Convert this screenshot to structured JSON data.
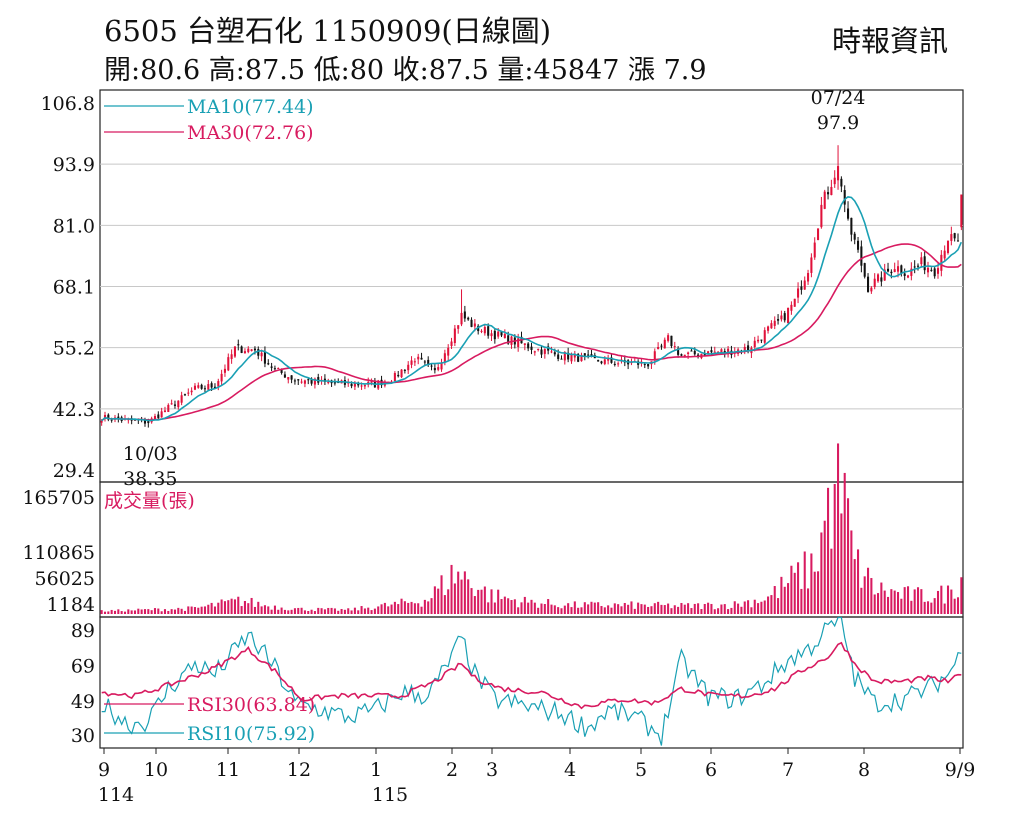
{
  "header": {
    "title": "6505 台塑石化 1150909(日線圖)",
    "source": "時報資訊",
    "ohlc": "開:80.6 高:87.5 低:80 收:87.5 量:45847 漲 7.9"
  },
  "colors": {
    "up": "#e0113a",
    "down": "#111111",
    "ma10": "#1aa0b4",
    "ma30": "#d81b60",
    "volume": "#d81b60",
    "rsi30": "#d81b60",
    "rsi10": "#1aa0b4",
    "grid": "#c8c8c8"
  },
  "chart_data": [
    {
      "type": "candlestick",
      "title": "6505 台塑石化 1150909(日線圖)",
      "ylim": [
        29.4,
        106.8
      ],
      "y_ticks": [
        "106.8",
        "93.9",
        "81.0",
        "68.1",
        "55.2",
        "42.3",
        "29.4"
      ],
      "x_ticks": [
        "9",
        "10",
        "11",
        "12",
        "1",
        "2",
        "3",
        "4",
        "5",
        "6",
        "7",
        "8",
        "9/9"
      ],
      "x_tick_sublabels": [
        {
          "at": "9",
          "label": "114"
        },
        {
          "at": "1",
          "label": "115"
        }
      ],
      "legend": [
        {
          "name": "MA10(77.44)"
        },
        {
          "name": "MA30(72.76)"
        }
      ],
      "annotations": [
        {
          "date": "07/24",
          "value": "97.9",
          "label": "07/24\n97.9"
        },
        {
          "date": "10/03",
          "value": "38.35",
          "label": "10/03\n38.35"
        }
      ],
      "last_candle": {
        "open": 80.6,
        "high": 87.5,
        "low": 80,
        "close": 87.5
      },
      "close_anchors": [
        [
          0,
          40.5
        ],
        [
          8,
          39.8
        ],
        [
          14,
          39.5
        ],
        [
          20,
          42.5
        ],
        [
          28,
          46.5
        ],
        [
          34,
          47.2
        ],
        [
          40,
          55.0
        ],
        [
          46,
          54.8
        ],
        [
          52,
          50.5
        ],
        [
          58,
          48.5
        ],
        [
          66,
          47.8
        ],
        [
          74,
          47.5
        ],
        [
          82,
          47.5
        ],
        [
          88,
          49.0
        ],
        [
          94,
          53.0
        ],
        [
          100,
          50.0
        ],
        [
          104,
          56.0
        ],
        [
          108,
          62.0
        ],
        [
          112,
          59.5
        ],
        [
          118,
          58.0
        ],
        [
          124,
          56.5
        ],
        [
          130,
          55.0
        ],
        [
          136,
          53.8
        ],
        [
          142,
          53.2
        ],
        [
          148,
          52.5
        ],
        [
          156,
          52.0
        ],
        [
          164,
          51.8
        ],
        [
          170,
          57.0
        ],
        [
          174,
          53.5
        ],
        [
          180,
          54.0
        ],
        [
          188,
          54.5
        ],
        [
          194,
          55.0
        ],
        [
          200,
          59.0
        ],
        [
          204,
          61.0
        ],
        [
          208,
          65.0
        ],
        [
          212,
          72.0
        ],
        [
          216,
          85.0
        ],
        [
          220,
          92.0
        ],
        [
          222,
          90.0
        ],
        [
          224,
          81.0
        ],
        [
          226,
          77.5
        ],
        [
          230,
          68.0
        ],
        [
          234,
          70.0
        ],
        [
          238,
          72.5
        ],
        [
          242,
          71.0
        ],
        [
          246,
          73.0
        ],
        [
          250,
          71.5
        ],
        [
          254,
          78.5
        ],
        [
          257,
          77.0
        ],
        [
          258,
          87.5
        ]
      ],
      "ma10_last": 77.44,
      "ma30_last": 72.76
    },
    {
      "type": "bar",
      "title": "成交量(張)",
      "ylim": [
        1184,
        165705
      ],
      "y_ticks": [
        "165705",
        "110865",
        "56025",
        "1184"
      ],
      "volume_anchors": [
        [
          0,
          2500
        ],
        [
          28,
          6000
        ],
        [
          36,
          12000
        ],
        [
          42,
          16000
        ],
        [
          50,
          9000
        ],
        [
          60,
          5000
        ],
        [
          74,
          4000
        ],
        [
          88,
          11000
        ],
        [
          98,
          18000
        ],
        [
          106,
          52000
        ],
        [
          110,
          44000
        ],
        [
          116,
          24000
        ],
        [
          126,
          15000
        ],
        [
          140,
          10000
        ],
        [
          160,
          10000
        ],
        [
          176,
          9000
        ],
        [
          190,
          11000
        ],
        [
          200,
          20000
        ],
        [
          208,
          46000
        ],
        [
          214,
          62000
        ],
        [
          218,
          135000
        ],
        [
          220,
          165705
        ],
        [
          223,
          140000
        ],
        [
          226,
          65000
        ],
        [
          232,
          32000
        ],
        [
          240,
          24000
        ],
        [
          248,
          22000
        ],
        [
          254,
          26000
        ],
        [
          258,
          45847
        ]
      ]
    },
    {
      "type": "line",
      "title": "RSI",
      "y_ticks": [
        "89",
        "69",
        "49",
        "30"
      ],
      "legend": [
        {
          "name": "RSI30(63.84)"
        },
        {
          "name": "RSI10(75.92)"
        }
      ],
      "series": [
        {
          "name": "RSI30(63.84)",
          "anchors": [
            [
              0,
              54
            ],
            [
              10,
              52
            ],
            [
              20,
              58
            ],
            [
              32,
              66
            ],
            [
              44,
              78
            ],
            [
              52,
              66
            ],
            [
              60,
              50
            ],
            [
              70,
              52
            ],
            [
              80,
              52
            ],
            [
              90,
              52
            ],
            [
              100,
              60
            ],
            [
              108,
              70
            ],
            [
              112,
              62
            ],
            [
              120,
              56
            ],
            [
              132,
              54
            ],
            [
              144,
              46
            ],
            [
              156,
              50
            ],
            [
              166,
              48
            ],
            [
              174,
              56
            ],
            [
              184,
              52
            ],
            [
              194,
              52
            ],
            [
              202,
              56
            ],
            [
              210,
              66
            ],
            [
              218,
              74
            ],
            [
              222,
              82
            ],
            [
              226,
              70
            ],
            [
              232,
              60
            ],
            [
              240,
              60
            ],
            [
              248,
              62
            ],
            [
              254,
              60
            ],
            [
              258,
              63.84
            ]
          ]
        },
        {
          "name": "RSI10(75.92)",
          "anchors": [
            [
              0,
              48
            ],
            [
              8,
              36
            ],
            [
              14,
              38
            ],
            [
              20,
              56
            ],
            [
              28,
              70
            ],
            [
              34,
              64
            ],
            [
              44,
              86
            ],
            [
              52,
              68
            ],
            [
              58,
              48
            ],
            [
              66,
              44
            ],
            [
              74,
              40
            ],
            [
              82,
              44
            ],
            [
              90,
              54
            ],
            [
              98,
              52
            ],
            [
              104,
              70
            ],
            [
              108,
              84
            ],
            [
              112,
              64
            ],
            [
              118,
              50
            ],
            [
              128,
              46
            ],
            [
              138,
              42
            ],
            [
              146,
              34
            ],
            [
              152,
              44
            ],
            [
              160,
              40
            ],
            [
              168,
              30
            ],
            [
              174,
              72
            ],
            [
              182,
              52
            ],
            [
              190,
              50
            ],
            [
              198,
              58
            ],
            [
              206,
              72
            ],
            [
              212,
              78
            ],
            [
              218,
              90
            ],
            [
              222,
              94
            ],
            [
              226,
              62
            ],
            [
              232,
              48
            ],
            [
              240,
              50
            ],
            [
              248,
              56
            ],
            [
              254,
              64
            ],
            [
              258,
              75.92
            ]
          ]
        }
      ]
    }
  ]
}
